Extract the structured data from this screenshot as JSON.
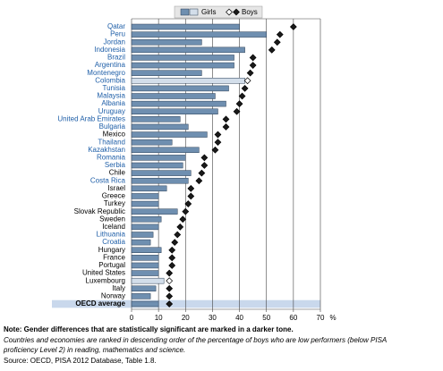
{
  "chart_data": {
    "type": "hbar-dot",
    "categories": [
      "Qatar",
      "Peru",
      "Jordan",
      "Indonesia",
      "Brazil",
      "Argentina",
      "Montenegro",
      "Colombia",
      "Tunisia",
      "Malaysia",
      "Albania",
      "Uruguay",
      "United Arab Emirates",
      "Bulgaria",
      "Mexico",
      "Thailand",
      "Kazakhstan",
      "Romania",
      "Serbia",
      "Chile",
      "Costa Rica",
      "Israel",
      "Greece",
      "Turkey",
      "Slovak Republic",
      "Sweden",
      "Iceland",
      "Lithuania",
      "Croatia",
      "Hungary",
      "France",
      "Portugal",
      "United States",
      "Luxembourg",
      "Italy",
      "Norway",
      "OECD average"
    ],
    "partner": [
      true,
      true,
      true,
      true,
      true,
      true,
      true,
      true,
      true,
      true,
      true,
      true,
      true,
      true,
      false,
      true,
      true,
      true,
      true,
      false,
      true,
      false,
      false,
      false,
      false,
      false,
      false,
      true,
      true,
      false,
      false,
      false,
      false,
      false,
      false,
      false,
      false
    ],
    "label_colors": {
      "partner": "#1f5fa8",
      "oecd": "#000000"
    },
    "series": [
      {
        "name": "Girls",
        "color": "#6f8fb0",
        "light_color": "#d3deea",
        "values": [
          40,
          50,
          26,
          42,
          38,
          38,
          26,
          42,
          36,
          31,
          35,
          32,
          18,
          21,
          28,
          15,
          25,
          20,
          19,
          22,
          21,
          13,
          10,
          10,
          17,
          11,
          10,
          8,
          7,
          11,
          10,
          10,
          10,
          12,
          9,
          7,
          10
        ],
        "significant": [
          true,
          true,
          true,
          true,
          true,
          true,
          true,
          false,
          true,
          true,
          true,
          true,
          true,
          true,
          true,
          true,
          true,
          true,
          true,
          true,
          true,
          true,
          true,
          true,
          true,
          true,
          true,
          true,
          true,
          true,
          true,
          true,
          true,
          false,
          true,
          true,
          true
        ]
      },
      {
        "name": "Boys",
        "color": "#1a1a1a",
        "light_color": "#ffffff",
        "values": [
          60,
          55,
          54,
          52,
          45,
          45,
          44,
          43,
          42,
          41,
          40,
          39,
          35,
          35,
          32,
          32,
          31,
          27,
          27,
          26,
          25,
          22,
          22,
          21,
          20,
          19,
          18,
          17,
          16,
          15,
          15,
          15,
          14,
          14,
          14,
          14,
          14
        ],
        "significant": [
          true,
          true,
          true,
          true,
          true,
          true,
          true,
          false,
          true,
          true,
          true,
          true,
          true,
          true,
          true,
          true,
          true,
          true,
          true,
          true,
          true,
          true,
          true,
          true,
          true,
          true,
          true,
          true,
          true,
          true,
          true,
          true,
          true,
          false,
          true,
          true,
          true
        ]
      }
    ],
    "xlim": [
      0,
      70
    ],
    "xticks": [
      0,
      10,
      20,
      30,
      40,
      50,
      60,
      70
    ],
    "x_unit": "%",
    "grid": true,
    "notes": [
      "Note: Gender differences that are statistically significant are marked in a darker tone.",
      "Countries and economies are ranked in descending order of the percentage of boys who are low performers (below PISA",
      "proficiency Level 2) in reading, mathematics and science.",
      "Source: OECD, PISA 2012 Database, Table 1.8."
    ]
  }
}
